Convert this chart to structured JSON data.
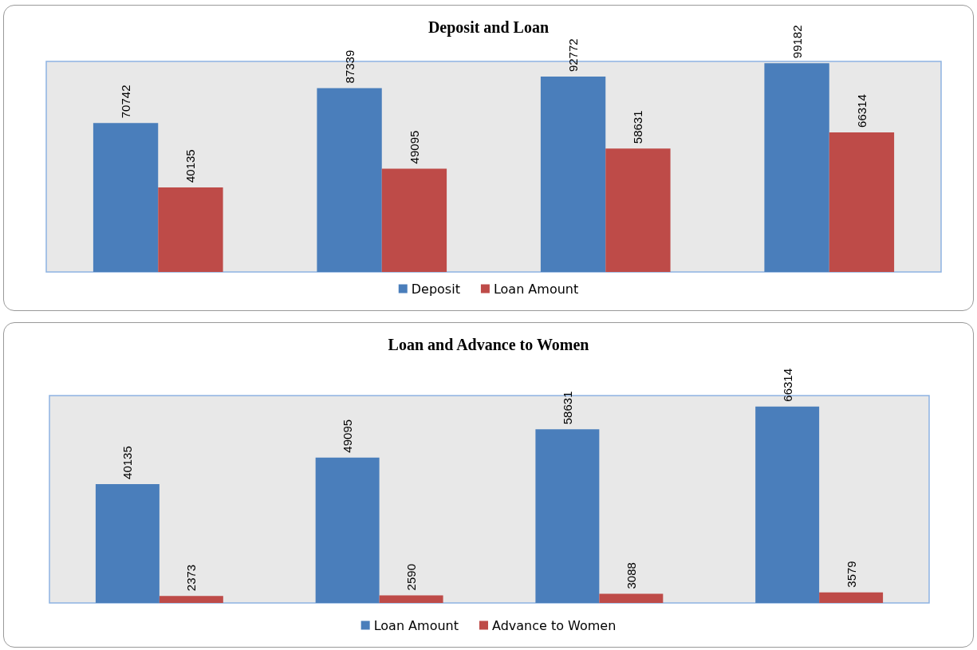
{
  "chart_data": [
    {
      "type": "bar",
      "title": "Deposit and Loan",
      "categories": [
        null,
        null,
        null,
        null
      ],
      "data_labels": true,
      "legend": "bottom",
      "grid": false,
      "tick_labels": false,
      "series": [
        {
          "name": "Deposit",
          "color": "#4a7ebb",
          "values": [
            70742,
            87339,
            92772,
            99182
          ]
        },
        {
          "name": "Loan Amount",
          "color": "#be4b48",
          "values": [
            40135,
            49095,
            58631,
            66314
          ]
        }
      ]
    },
    {
      "type": "bar",
      "title": "Loan and Advance to Women",
      "categories": [
        null,
        null,
        null,
        null
      ],
      "data_labels": true,
      "legend": "bottom",
      "grid": false,
      "tick_labels": false,
      "series": [
        {
          "name": "Loan Amount",
          "color": "#4a7ebb",
          "values": [
            40135,
            49095,
            58631,
            66314
          ]
        },
        {
          "name": "Advance to Women",
          "color": "#be4b48",
          "values": [
            2373,
            2590,
            3088,
            3579
          ]
        }
      ]
    }
  ]
}
